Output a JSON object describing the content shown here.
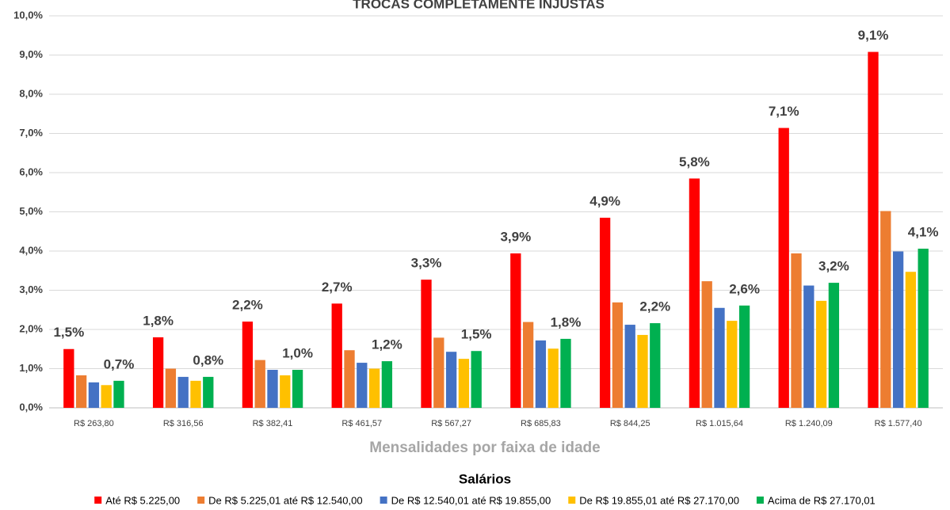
{
  "chart_data": {
    "type": "bar",
    "title": "TROCAS COMPLETAMENTE INJUSTAS",
    "x_label": "Mensalidades  por faixa de idade",
    "legend_title": "Salários",
    "categories": [
      "R$ 263,80",
      "R$ 316,56",
      "R$ 382,41",
      "R$ 461,57",
      "R$ 567,27",
      "R$ 685,83",
      "R$ 844,25",
      "R$ 1.015,64",
      "R$ 1.240,09",
      "R$ 1.577,40"
    ],
    "series": [
      {
        "name": "Até R$ 5.225,00",
        "color": "#ff0000",
        "values": [
          1.5,
          1.8,
          2.2,
          2.66,
          3.27,
          3.94,
          4.85,
          5.85,
          7.14,
          9.08
        ],
        "value_labels": [
          "1,5%",
          "1,8%",
          "2,2%",
          "2,7%",
          "3,3%",
          "3,9%",
          "4,9%",
          "5,8%",
          "7,1%",
          "9,1%"
        ]
      },
      {
        "name": "De R$ 5.225,01 até R$ 12.540,00",
        "color": "#ed7d31",
        "values": [
          0.83,
          1.0,
          1.22,
          1.47,
          1.79,
          2.19,
          2.69,
          3.23,
          3.94,
          5.02
        ]
      },
      {
        "name": "De R$ 12.540,01 até R$ 19.855,00",
        "color": "#4472c4",
        "values": [
          0.65,
          0.79,
          0.97,
          1.15,
          1.43,
          1.72,
          2.12,
          2.55,
          3.12,
          3.99
        ]
      },
      {
        "name": "De R$ 19.855,01 até R$ 27.170,00",
        "color": "#ffc000",
        "values": [
          0.58,
          0.69,
          0.83,
          1.0,
          1.25,
          1.51,
          1.86,
          2.22,
          2.73,
          3.47
        ]
      },
      {
        "name": "Acima de R$ 27.170,01",
        "color": "#00b050",
        "values": [
          0.69,
          0.79,
          0.97,
          1.19,
          1.45,
          1.76,
          2.16,
          2.61,
          3.19,
          4.06
        ],
        "value_labels": [
          "0,7%",
          "0,8%",
          "1,0%",
          "1,2%",
          "1,5%",
          "1,8%",
          "2,2%",
          "2,6%",
          "3,2%",
          "4,1%"
        ]
      }
    ],
    "ylim": [
      0,
      10
    ],
    "yticks": [
      {
        "value": 0,
        "label": "0,0%"
      },
      {
        "value": 1,
        "label": "1,0%"
      },
      {
        "value": 2,
        "label": "2,0%"
      },
      {
        "value": 3,
        "label": "3,0%"
      },
      {
        "value": 4,
        "label": "4,0%"
      },
      {
        "value": 5,
        "label": "5,0%"
      },
      {
        "value": 6,
        "label": "6,0%"
      },
      {
        "value": 7,
        "label": "7,0%"
      },
      {
        "value": 8,
        "label": "8,0%"
      },
      {
        "value": 9,
        "label": "9,0%"
      },
      {
        "value": 10,
        "label": "10,0%"
      }
    ],
    "grid": true
  }
}
